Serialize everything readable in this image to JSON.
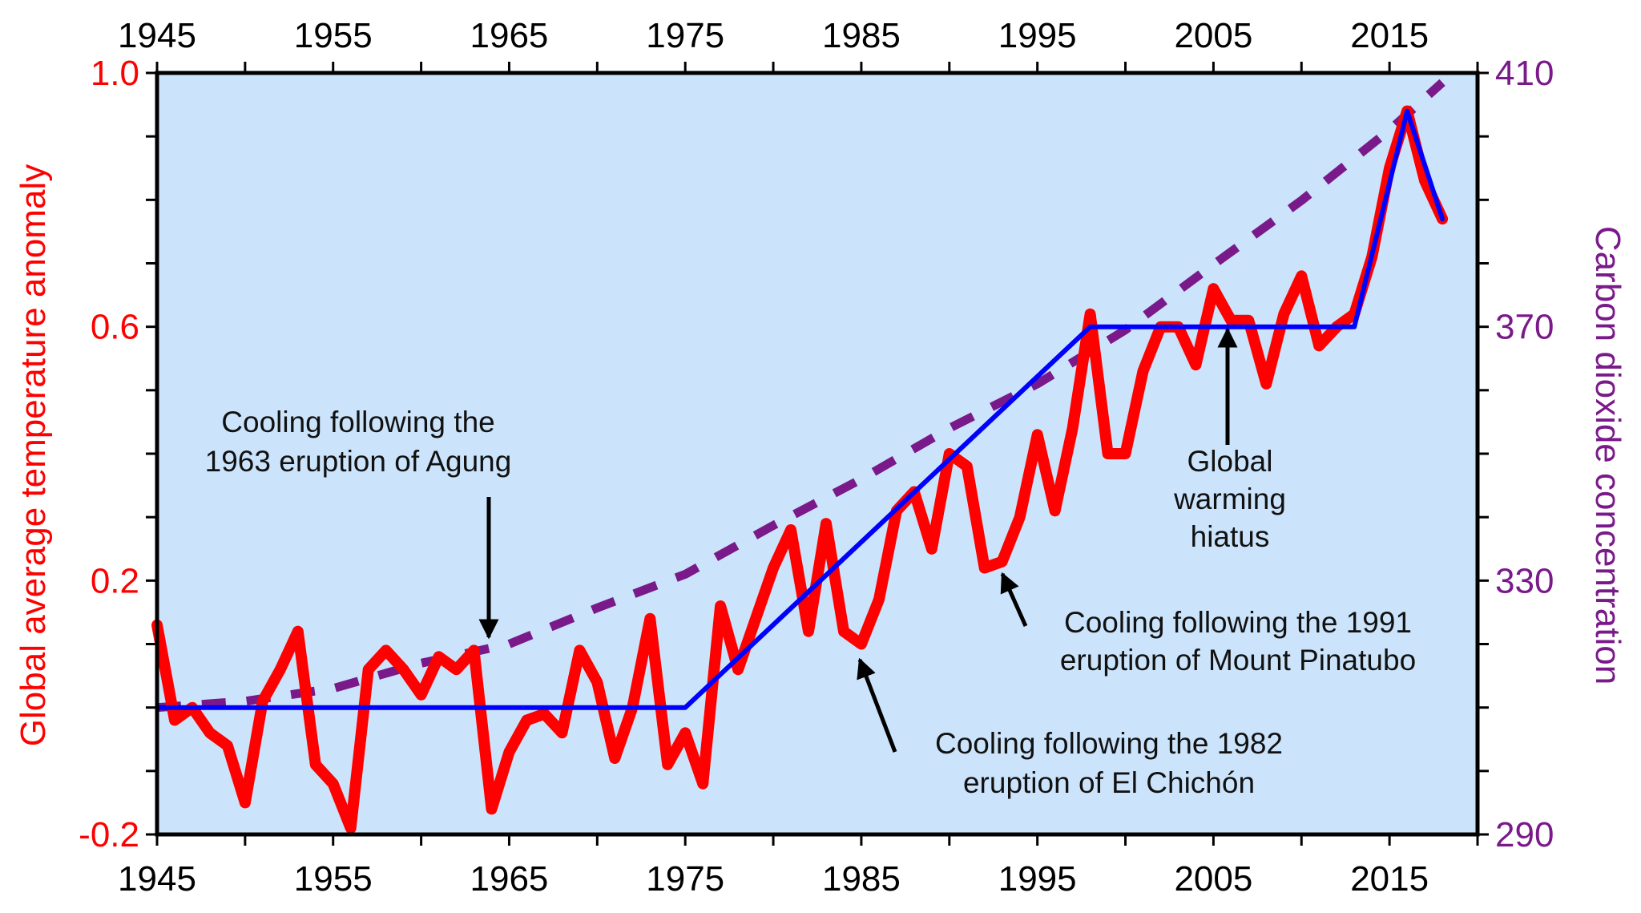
{
  "chart_data": {
    "type": "line",
    "title": "",
    "xlabel": "",
    "ylabel": "Global average temperature anomaly",
    "y2label": "Carbon dioxide concentration",
    "xlim": [
      1945,
      2020
    ],
    "ylim": [
      -0.2,
      1.0
    ],
    "y2lim": [
      290,
      410
    ],
    "x_ticks": [
      "1945",
      "1955",
      "1965",
      "1975",
      "1985",
      "1995",
      "2005",
      "2015"
    ],
    "y_ticks": [
      "-0.2",
      "0.2",
      "0.6",
      "1.0"
    ],
    "y2_ticks": [
      "290",
      "330",
      "370",
      "410"
    ],
    "grid": false,
    "background": "#cce4fb",
    "colors": {
      "temperature": "#ff0000",
      "trend": "#0000ff",
      "co2": "#7a1a8a",
      "left_axis": "#ff0000",
      "right_axis": "#7a1a8a"
    },
    "series": [
      {
        "id": "temperature",
        "style": "thick solid",
        "axis": "left",
        "x": [
          1945,
          1946,
          1947,
          1948,
          1949,
          1950,
          1951,
          1952,
          1953,
          1954,
          1955,
          1956,
          1957,
          1958,
          1959,
          1960,
          1961,
          1962,
          1963,
          1964,
          1965,
          1966,
          1967,
          1968,
          1969,
          1970,
          1971,
          1972,
          1973,
          1974,
          1975,
          1976,
          1977,
          1978,
          1979,
          1980,
          1981,
          1982,
          1983,
          1984,
          1985,
          1986,
          1987,
          1988,
          1989,
          1990,
          1991,
          1992,
          1993,
          1994,
          1995,
          1996,
          1997,
          1998,
          1999,
          2000,
          2001,
          2002,
          2003,
          2004,
          2005,
          2006,
          2007,
          2008,
          2009,
          2010,
          2011,
          2012,
          2013,
          2014,
          2015,
          2016,
          2017,
          2018
        ],
        "y": [
          0.13,
          -0.02,
          0.0,
          -0.04,
          -0.06,
          -0.15,
          0.01,
          0.06,
          0.12,
          -0.09,
          -0.12,
          -0.19,
          0.06,
          0.09,
          0.06,
          0.02,
          0.08,
          0.06,
          0.09,
          -0.16,
          -0.07,
          -0.02,
          -0.01,
          -0.04,
          0.09,
          0.04,
          -0.08,
          0.0,
          0.14,
          -0.09,
          -0.04,
          -0.12,
          0.16,
          0.06,
          0.14,
          0.22,
          0.28,
          0.12,
          0.29,
          0.12,
          0.1,
          0.17,
          0.31,
          0.34,
          0.25,
          0.4,
          0.38,
          0.22,
          0.23,
          0.3,
          0.43,
          0.31,
          0.44,
          0.62,
          0.4,
          0.4,
          0.53,
          0.6,
          0.6,
          0.54,
          0.66,
          0.61,
          0.61,
          0.51,
          0.62,
          0.68,
          0.57,
          0.6,
          0.62,
          0.71,
          0.85,
          0.94,
          0.83,
          0.77
        ]
      },
      {
        "id": "trend",
        "style": "solid",
        "axis": "left",
        "x": [
          1945,
          1975,
          1998,
          2013,
          2016,
          2018
        ],
        "y": [
          0.0,
          0.0,
          0.6,
          0.6,
          0.94,
          0.77
        ]
      },
      {
        "id": "co2",
        "style": "dashed",
        "axis": "right",
        "x": [
          1945,
          1950,
          1955,
          1960,
          1965,
          1970,
          1975,
          1980,
          1985,
          1990,
          1995,
          2000,
          2005,
          2010,
          2015,
          2018
        ],
        "y": [
          310,
          311,
          313,
          317,
          320,
          325.7,
          331,
          338.7,
          346,
          354,
          361,
          369.5,
          379.8,
          389.9,
          401,
          408.5
        ]
      }
    ],
    "annotations": [
      {
        "lines": [
          "Cooling following the",
          "1963 eruption of Agung"
        ],
        "arrow_to": [
          1964,
          0.09
        ]
      },
      {
        "lines": [
          "Global",
          "warming",
          "hiatus"
        ],
        "arrow_to": [
          2006,
          0.6
        ]
      },
      {
        "lines": [
          "Cooling following the 1991",
          "eruption of Mount Pinatubo"
        ],
        "arrow_to": [
          1993,
          0.22
        ]
      },
      {
        "lines": [
          "Cooling following the 1982",
          "eruption of El Chichón"
        ],
        "arrow_to": [
          1985,
          0.1
        ]
      }
    ]
  }
}
